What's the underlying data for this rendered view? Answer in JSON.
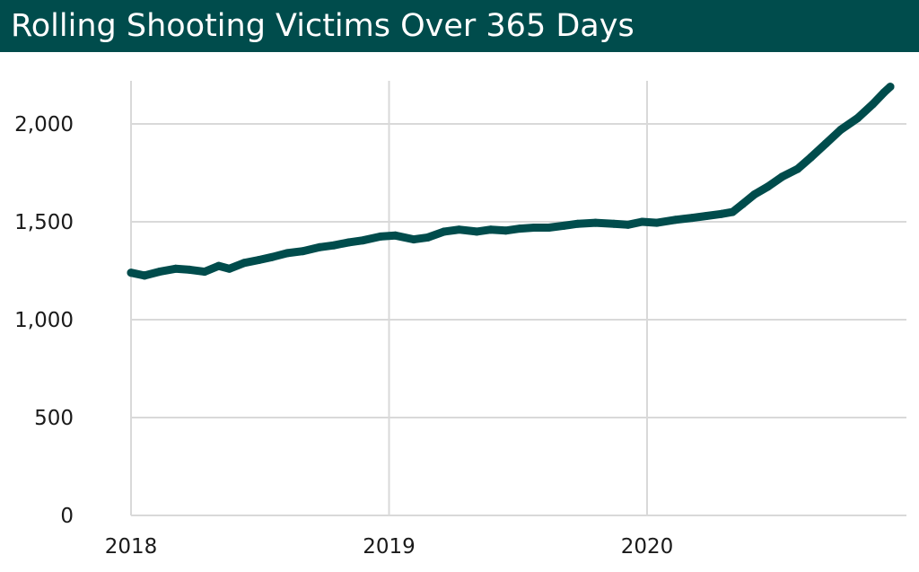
{
  "chart_data": {
    "type": "line",
    "title": "Rolling Shooting Victims Over 365 Days",
    "colors": {
      "title_background": "#004c4c",
      "line": "#004c4c",
      "grid": "#d9d9d9"
    },
    "grid": true,
    "legend": "none",
    "xlim": [
      "2018-01-01",
      "2020-12-15"
    ],
    "ylim": [
      0,
      2200
    ],
    "x_ticks": [
      "2018",
      "2019",
      "2020"
    ],
    "y_ticks": [
      "0",
      "500",
      "1,000",
      "1,500",
      "2,000"
    ],
    "series": [
      {
        "x": [
          "2018-01-01",
          "2018-01-20",
          "2018-02-10",
          "2018-03-05",
          "2018-03-25",
          "2018-04-15",
          "2018-05-05",
          "2018-05-20",
          "2018-06-10",
          "2018-07-01",
          "2018-07-20",
          "2018-08-10",
          "2018-09-01",
          "2018-09-25",
          "2018-10-15",
          "2018-11-05",
          "2018-11-25",
          "2018-12-20",
          "2019-01-10",
          "2019-02-05",
          "2019-02-25",
          "2019-03-20",
          "2019-04-10",
          "2019-05-05",
          "2019-05-25",
          "2019-06-15",
          "2019-07-05",
          "2019-07-25",
          "2019-08-15",
          "2019-09-05",
          "2019-09-25",
          "2019-10-20",
          "2019-11-15",
          "2019-12-05",
          "2019-12-25",
          "2020-01-15",
          "2020-02-10",
          "2020-03-05",
          "2020-03-25",
          "2020-04-15",
          "2020-05-01",
          "2020-05-15",
          "2020-06-01",
          "2020-06-20",
          "2020-07-10",
          "2020-08-01",
          "2020-08-20",
          "2020-09-10",
          "2020-10-01",
          "2020-10-25",
          "2020-11-15",
          "2020-12-01",
          "2020-12-10"
        ],
        "values": [
          1240,
          1225,
          1245,
          1260,
          1255,
          1245,
          1275,
          1260,
          1290,
          1305,
          1320,
          1340,
          1350,
          1370,
          1380,
          1395,
          1405,
          1425,
          1430,
          1410,
          1420,
          1450,
          1460,
          1450,
          1460,
          1455,
          1465,
          1470,
          1470,
          1480,
          1490,
          1495,
          1490,
          1485,
          1500,
          1495,
          1510,
          1520,
          1530,
          1540,
          1550,
          1590,
          1640,
          1680,
          1730,
          1770,
          1830,
          1900,
          1970,
          2030,
          2100,
          2160,
          2190
        ]
      }
    ]
  }
}
